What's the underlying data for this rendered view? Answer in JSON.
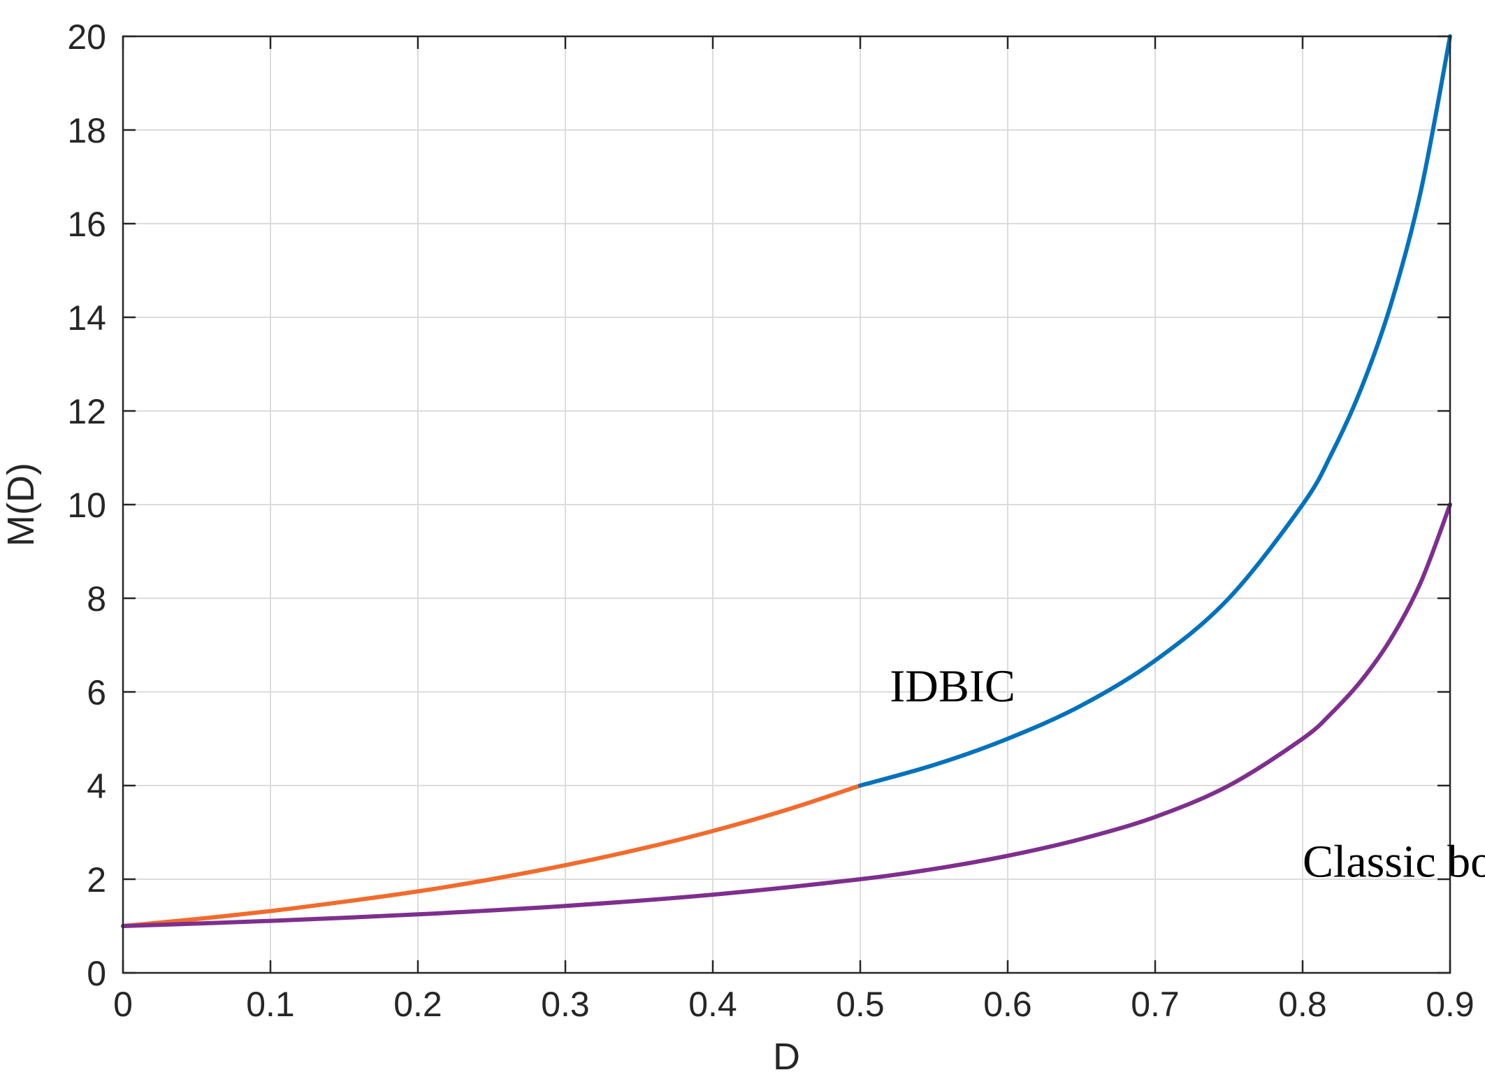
{
  "chart_data": {
    "type": "line",
    "xlabel": "D",
    "ylabel": "M(D)",
    "xlim": [
      0,
      0.9
    ],
    "ylim": [
      0,
      20
    ],
    "xticks": [
      "0",
      "0.1",
      "0.2",
      "0.3",
      "0.4",
      "0.5",
      "0.6",
      "0.7",
      "0.8",
      "0.9"
    ],
    "yticks": [
      "0",
      "2",
      "4",
      "6",
      "8",
      "10",
      "12",
      "14",
      "16",
      "18",
      "20"
    ],
    "grid": true,
    "series": [
      {
        "color": "#F26B2C",
        "x": [
          0,
          0.05,
          0.1,
          0.15,
          0.2,
          0.25,
          0.3,
          0.35,
          0.4,
          0.45,
          0.5
        ],
        "y": [
          1.0,
          1.15,
          1.32,
          1.52,
          1.74,
          2.0,
          2.3,
          2.64,
          3.03,
          3.48,
          4.0
        ]
      },
      {
        "color": "#0072BD",
        "x": [
          0.5,
          0.55,
          0.6,
          0.65,
          0.7,
          0.75,
          0.8,
          0.82,
          0.84,
          0.86,
          0.88,
          0.9
        ],
        "y": [
          4.0,
          4.44,
          5.0,
          5.71,
          6.67,
          8.0,
          10.0,
          11.11,
          12.5,
          14.29,
          16.67,
          20.0
        ]
      },
      {
        "name": "Classic boost",
        "color": "#7E2F8E",
        "x": [
          0,
          0.1,
          0.2,
          0.3,
          0.4,
          0.5,
          0.55,
          0.6,
          0.65,
          0.7,
          0.75,
          0.8,
          0.82,
          0.84,
          0.86,
          0.88,
          0.9
        ],
        "y": [
          1.0,
          1.11,
          1.25,
          1.43,
          1.67,
          2.0,
          2.22,
          2.5,
          2.86,
          3.33,
          4.0,
          5.0,
          5.56,
          6.25,
          7.14,
          8.33,
          10.0
        ]
      }
    ],
    "annotations": [
      {
        "text": "IDBIC",
        "x": 0.52,
        "y": 5.8
      },
      {
        "text": "Classic boost",
        "x": 0.8,
        "y": 2.05
      }
    ]
  }
}
